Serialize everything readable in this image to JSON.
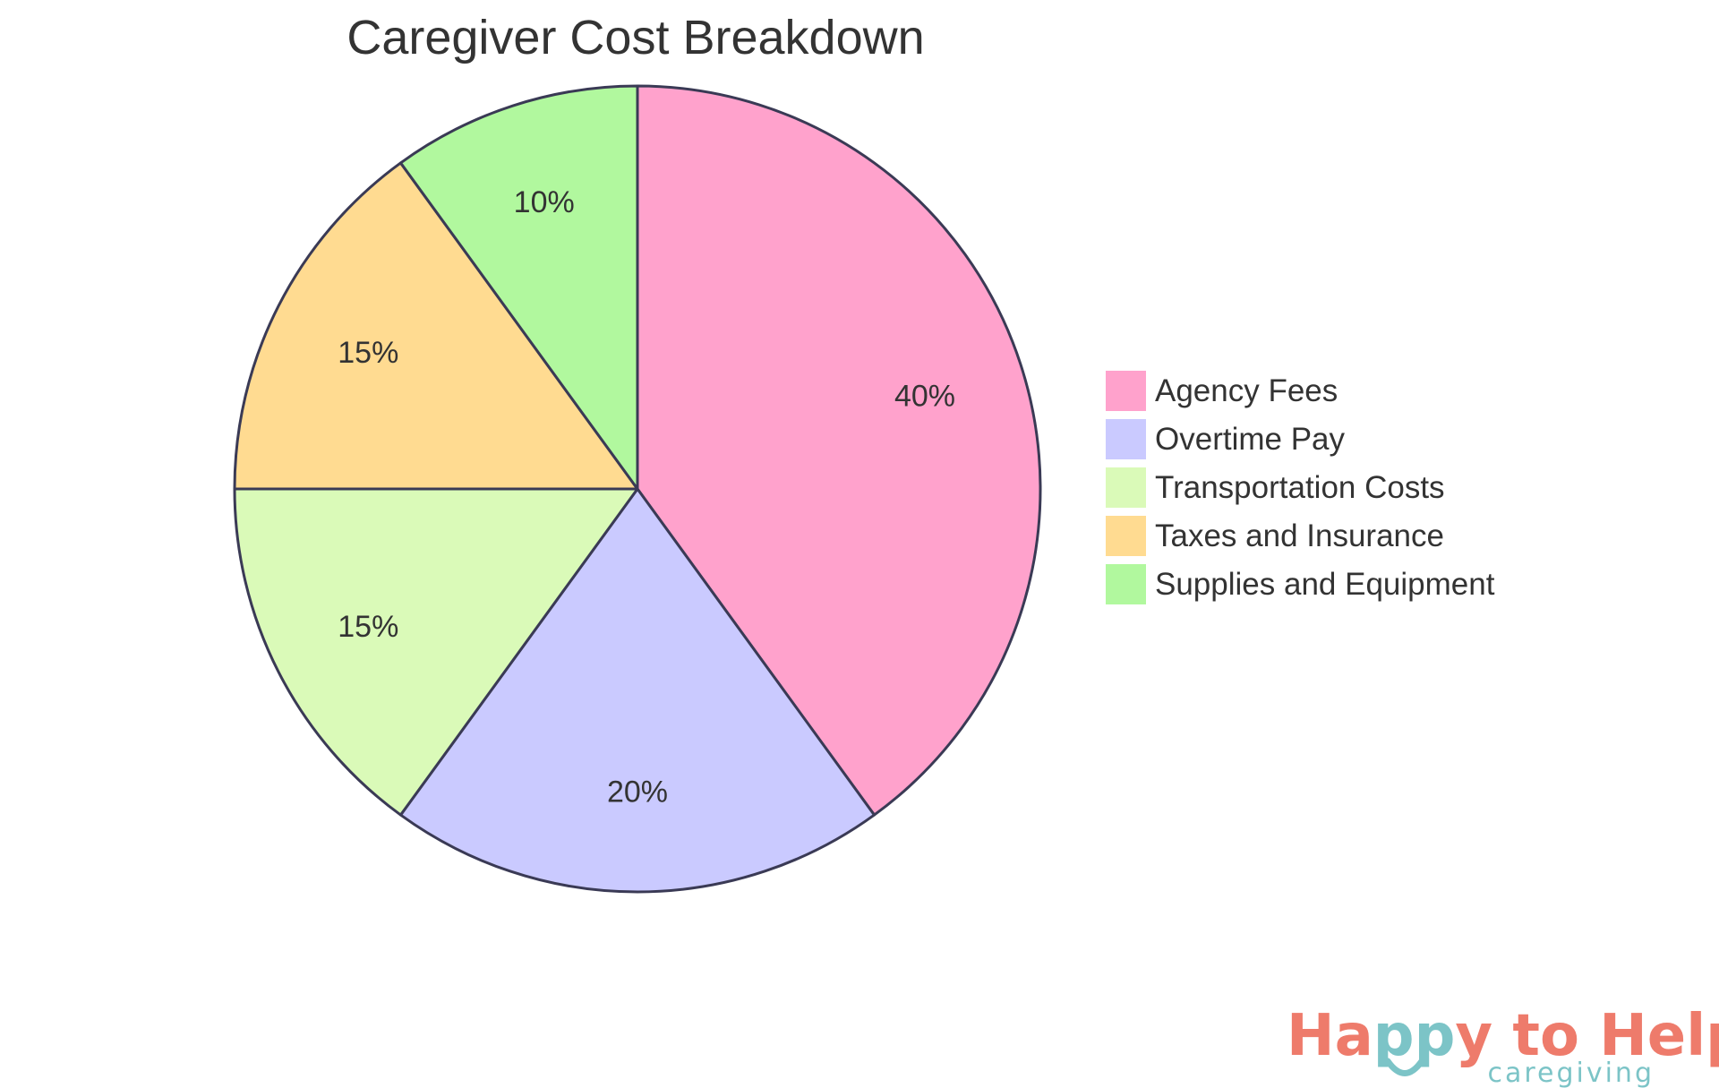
{
  "chart_data": {
    "type": "pie",
    "title": "Caregiver Cost Breakdown",
    "legend_position": "right",
    "slices": [
      {
        "label": "Agency Fees",
        "value": 40,
        "display": "40%",
        "color": "#FFA2CC"
      },
      {
        "label": "Overtime Pay",
        "value": 20,
        "display": "20%",
        "color": "#CACAFF"
      },
      {
        "label": "Transportation Costs",
        "value": 15,
        "display": "15%",
        "color": "#DAFAB8"
      },
      {
        "label": "Taxes and Insurance",
        "value": 15,
        "display": "15%",
        "color": "#FFDB91"
      },
      {
        "label": "Supplies and Equipment",
        "value": 10,
        "display": "10%",
        "color": "#B1F89E"
      }
    ],
    "start": "12 o'clock",
    "direction": "clockwise",
    "stroke_color": "#3A3A55"
  },
  "logo": {
    "text_part1": "Ha",
    "text_part2": "pp",
    "text_part3": "y to Help",
    "subtitle": "caregiving",
    "color_primary": "#EE7B6B",
    "color_accent": "#7CC4C7"
  }
}
